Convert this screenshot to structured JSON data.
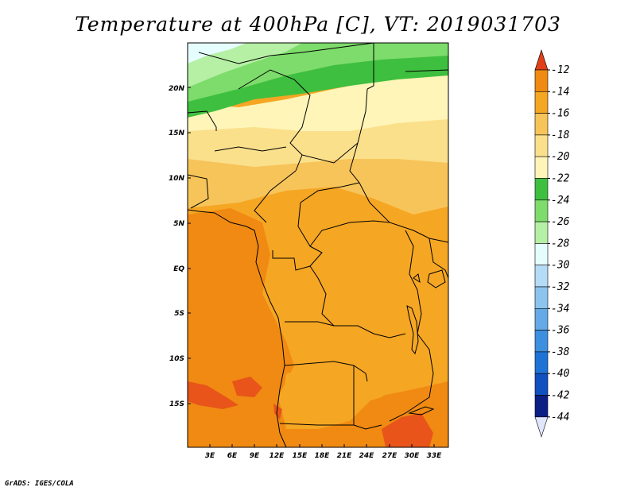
{
  "title": "Temperature at 400hPa [C], VT: 2019031703",
  "credit": "GrADS: IGES/COLA",
  "map": {
    "lat_labels": [
      "20N",
      "15N",
      "10N",
      "5N",
      "EQ",
      "5S",
      "10S",
      "15S"
    ],
    "lon_labels": [
      "3E",
      "6E",
      "9E",
      "12E",
      "15E",
      "18E",
      "21E",
      "24E",
      "27E",
      "30E",
      "33E"
    ]
  },
  "colorbar": {
    "labels": [
      "-12",
      "-14",
      "-16",
      "-18",
      "-20",
      "-22",
      "-24",
      "-26",
      "-28",
      "-30",
      "-32",
      "-34",
      "-36",
      "-38",
      "-40",
      "-42",
      "-44"
    ],
    "colors": [
      "#e8541a",
      "#f08a12",
      "#f5a623",
      "#f7c45a",
      "#fbe08c",
      "#fff5b8",
      "#3fbf3f",
      "#7ddc6b",
      "#b5f0a4",
      "#e6fdfd",
      "#b5dcf7",
      "#8cc4ee",
      "#65aae6",
      "#3d8fe0",
      "#1f73d6",
      "#1050c0",
      "#0b1f85"
    ],
    "colors_bottom_note": "",
    "top_arrow_color": "#e0401a",
    "bottom_arrow_color": "#e0e6fb"
  }
}
